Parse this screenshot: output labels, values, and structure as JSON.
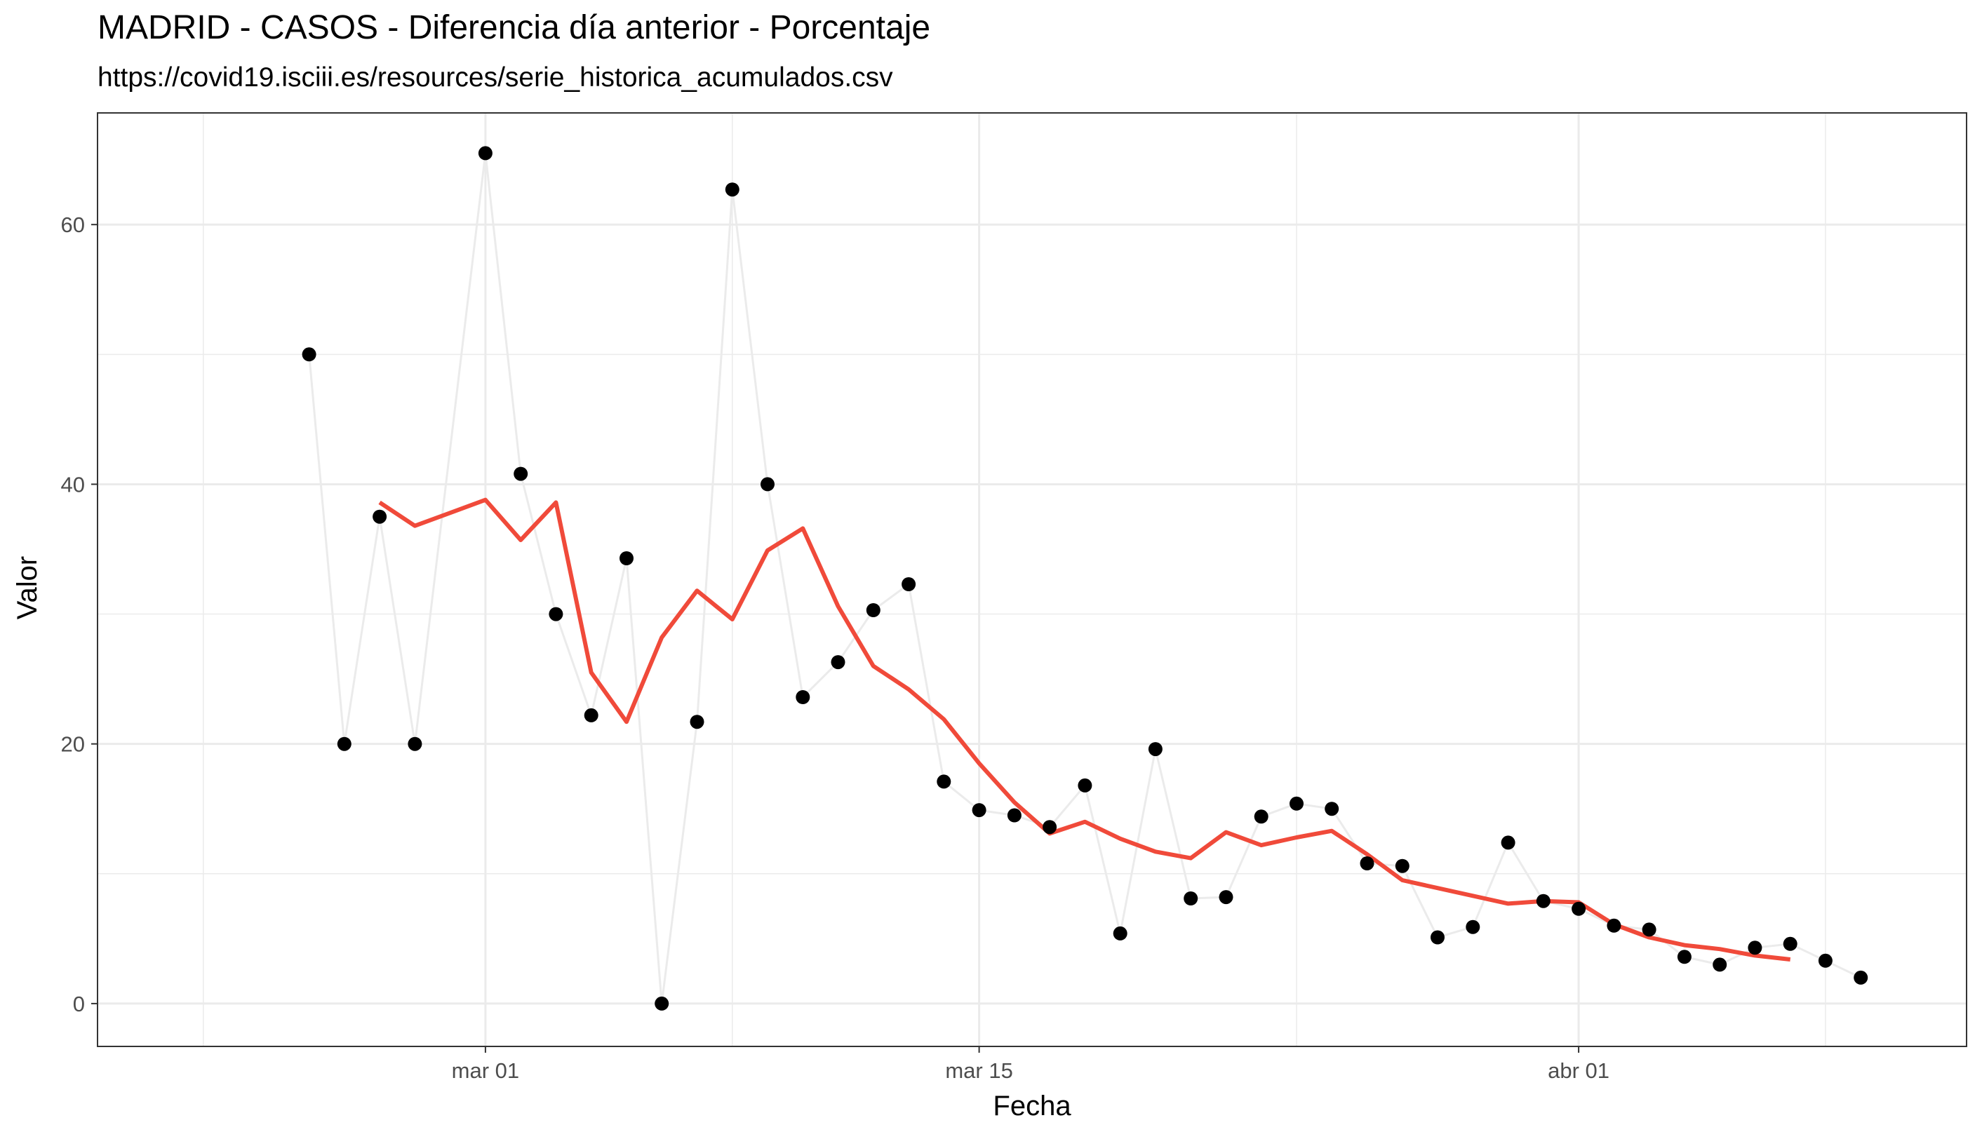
{
  "chart_data": {
    "type": "scatter",
    "title": "MADRID - CASOS - Diferencia día anterior - Porcentaje",
    "subtitle": "https://covid19.isciii.es/resources/serie_historica_acumulados.csv",
    "xlabel": "Fecha",
    "ylabel": "Valor",
    "x_tick_labels": [
      "mar 01",
      "mar 15",
      "abr 01"
    ],
    "y_tick_labels": [
      "0",
      "20",
      "40",
      "60"
    ],
    "y_ticks": [
      0,
      20,
      40,
      60
    ],
    "ylim": [
      -3.3,
      68.6
    ],
    "xlim": [
      "2020-02-19",
      "2020-04-12"
    ],
    "grid": true,
    "colors": {
      "points": "#000000",
      "connector_line": "#ebebeb",
      "smooth_line": "#f04a3a",
      "grid": "#ebebeb",
      "panel_border": "#333333"
    },
    "series": [
      {
        "style": "points with light connecting line",
        "x": [
          "2020-02-25",
          "2020-02-26",
          "2020-02-27",
          "2020-02-28",
          "2020-03-01",
          "2020-03-02",
          "2020-03-03",
          "2020-03-04",
          "2020-03-05",
          "2020-03-06",
          "2020-03-07",
          "2020-03-08",
          "2020-03-09",
          "2020-03-10",
          "2020-03-11",
          "2020-03-12",
          "2020-03-13",
          "2020-03-14",
          "2020-03-15",
          "2020-03-16",
          "2020-03-17",
          "2020-03-18",
          "2020-03-19",
          "2020-03-20",
          "2020-03-21",
          "2020-03-22",
          "2020-03-23",
          "2020-03-24",
          "2020-03-25",
          "2020-03-26",
          "2020-03-27",
          "2020-03-28",
          "2020-03-29",
          "2020-03-30",
          "2020-03-31",
          "2020-04-01",
          "2020-04-02",
          "2020-04-03",
          "2020-04-04",
          "2020-04-05",
          "2020-04-06",
          "2020-04-07",
          "2020-04-08",
          "2020-04-09"
        ],
        "y": [
          50.0,
          20.0,
          37.5,
          20.0,
          65.5,
          40.8,
          30.0,
          22.2,
          34.3,
          0.0,
          21.7,
          62.7,
          40.0,
          23.6,
          26.3,
          30.3,
          32.3,
          17.1,
          14.9,
          14.5,
          13.6,
          16.8,
          5.4,
          19.6,
          8.1,
          8.2,
          14.4,
          15.4,
          15.0,
          10.8,
          10.6,
          5.1,
          5.9,
          12.4,
          7.9,
          7.3,
          6.0,
          5.7,
          3.6,
          3.0,
          4.3,
          4.6,
          3.3,
          2.0
        ]
      },
      {
        "style": "moving average line",
        "x": [
          "2020-02-27",
          "2020-02-28",
          "2020-03-01",
          "2020-03-02",
          "2020-03-03",
          "2020-03-04",
          "2020-03-05",
          "2020-03-06",
          "2020-03-07",
          "2020-03-08",
          "2020-03-09",
          "2020-03-10",
          "2020-03-11",
          "2020-03-12",
          "2020-03-13",
          "2020-03-14",
          "2020-03-15",
          "2020-03-16",
          "2020-03-17",
          "2020-03-18",
          "2020-03-19",
          "2020-03-20",
          "2020-03-21",
          "2020-03-22",
          "2020-03-23",
          "2020-03-24",
          "2020-03-25",
          "2020-03-26",
          "2020-03-27",
          "2020-03-28",
          "2020-03-29",
          "2020-03-30",
          "2020-03-31",
          "2020-04-01",
          "2020-04-02",
          "2020-04-03",
          "2020-04-04",
          "2020-04-05",
          "2020-04-06",
          "2020-04-07"
        ],
        "y": [
          38.6,
          36.8,
          38.8,
          35.7,
          38.6,
          25.5,
          21.7,
          28.2,
          31.8,
          29.6,
          34.9,
          36.6,
          30.6,
          26.0,
          24.2,
          21.9,
          18.5,
          15.5,
          13.1,
          14.0,
          12.7,
          11.7,
          11.2,
          13.2,
          12.2,
          12.8,
          13.3,
          11.5,
          9.5,
          8.9,
          8.3,
          7.7,
          7.9,
          7.8,
          6.1,
          5.1,
          4.5,
          4.2,
          3.7,
          3.4
        ]
      }
    ]
  }
}
